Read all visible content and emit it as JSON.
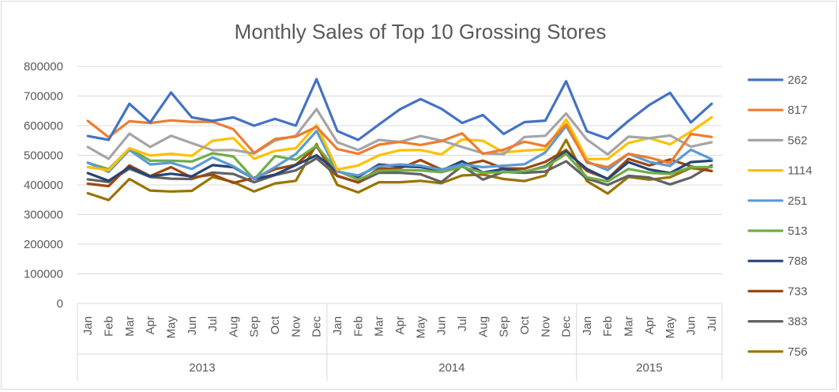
{
  "chart_data": {
    "type": "line",
    "title": "Monthly Sales of Top 10 Grossing Stores",
    "xlabel": "",
    "ylabel": "",
    "ylim": [
      0,
      800000
    ],
    "y_ticks": [
      "0",
      "100000",
      "200000",
      "300000",
      "400000",
      "500000",
      "600000",
      "700000",
      "800000"
    ],
    "grid": true,
    "legend_position": "right",
    "years": [
      {
        "label": "2013",
        "months": 12
      },
      {
        "label": "2014",
        "months": 12
      },
      {
        "label": "2015",
        "months": 7
      }
    ],
    "categories": [
      "Jan",
      "Feb",
      "Mar",
      "Apr",
      "May",
      "Jun",
      "Jul",
      "Aug",
      "Sep",
      "Oct",
      "Nov",
      "Dec",
      "Jan",
      "Feb",
      "Mar",
      "Apr",
      "May",
      "Jun",
      "Jul",
      "Aug",
      "Sep",
      "Oct",
      "Nov",
      "Dec",
      "Jan",
      "Feb",
      "Mar",
      "Apr",
      "May",
      "Jun",
      "Jul"
    ],
    "series": [
      {
        "name": "262",
        "color": "#4472C4",
        "values": [
          565000,
          552000,
          674000,
          611000,
          712000,
          628000,
          616000,
          628000,
          600000,
          623000,
          600000,
          757000,
          582000,
          552000,
          604000,
          655000,
          690000,
          657000,
          609000,
          636000,
          572000,
          612000,
          617000,
          750000,
          581000,
          556000,
          616000,
          670000,
          711000,
          611000,
          674000
        ]
      },
      {
        "name": "817",
        "color": "#ED7D31",
        "values": [
          616000,
          561000,
          615000,
          609000,
          618000,
          613000,
          613000,
          588000,
          508000,
          555000,
          563000,
          596000,
          521000,
          505000,
          536000,
          545000,
          535000,
          548000,
          574000,
          505000,
          519000,
          546000,
          531000,
          604000,
          475000,
          460000,
          505000,
          492000,
          474000,
          572000,
          562000
        ]
      },
      {
        "name": "562",
        "color": "#A5A5A5",
        "values": [
          528000,
          488000,
          573000,
          528000,
          566000,
          541000,
          517000,
          518000,
          506000,
          550000,
          566000,
          656000,
          544000,
          518000,
          552000,
          545000,
          565000,
          550000,
          528000,
          507000,
          504000,
          562000,
          566000,
          641000,
          553000,
          503000,
          563000,
          558000,
          567000,
          529000,
          544000
        ]
      },
      {
        "name": "1114",
        "color": "#FFC000",
        "values": [
          460000,
          450000,
          524000,
          499000,
          505000,
          498000,
          549000,
          558000,
          488000,
          515000,
          524000,
          602000,
          452000,
          466000,
          500000,
          517000,
          518000,
          503000,
          554000,
          549000,
          510000,
          516000,
          520000,
          621000,
          487000,
          488000,
          542000,
          558000,
          537000,
          580000,
          628000
        ]
      },
      {
        "name": "251",
        "color": "#5B9BD5",
        "values": [
          475000,
          444000,
          518000,
          469000,
          475000,
          454000,
          493000,
          463000,
          420000,
          460000,
          504000,
          582000,
          445000,
          432000,
          463000,
          469000,
          465000,
          451000,
          469000,
          460000,
          465000,
          470000,
          510000,
          599000,
          479000,
          450000,
          505000,
          478000,
          464000,
          519000,
          487000
        ]
      },
      {
        "name": "513",
        "color": "#70AD47",
        "values": [
          475000,
          453000,
          523000,
          482000,
          482000,
          479000,
          507000,
          496000,
          419000,
          497000,
          485000,
          532000,
          448000,
          418000,
          448000,
          450000,
          449000,
          443000,
          461000,
          441000,
          443000,
          446000,
          460000,
          505000,
          426000,
          412000,
          454000,
          441000,
          437000,
          460000,
          460000
        ]
      },
      {
        "name": "788",
        "color": "#264478",
        "values": [
          440000,
          414000,
          460000,
          429000,
          438000,
          429000,
          467000,
          460000,
          420000,
          435000,
          467000,
          500000,
          446000,
          427000,
          469000,
          463000,
          460000,
          448000,
          480000,
          442000,
          454000,
          444000,
          463000,
          512000,
          454000,
          420000,
          477000,
          452000,
          440000,
          477000,
          482000
        ]
      },
      {
        "name": "733",
        "color": "#9E480E",
        "values": [
          404000,
          396000,
          466000,
          430000,
          460000,
          425000,
          435000,
          407000,
          424000,
          453000,
          468000,
          530000,
          431000,
          409000,
          455000,
          456000,
          484000,
          452000,
          467000,
          482000,
          456000,
          455000,
          478000,
          518000,
          447000,
          421000,
          488000,
          466000,
          486000,
          463000,
          447000
        ]
      },
      {
        "name": "383",
        "color": "#636363",
        "values": [
          419000,
          410000,
          455000,
          427000,
          421000,
          420000,
          442000,
          437000,
          409000,
          433000,
          449000,
          490000,
          430000,
          408000,
          441000,
          441000,
          436000,
          410000,
          464000,
          418000,
          444000,
          441000,
          445000,
          480000,
          421000,
          400000,
          431000,
          425000,
          402000,
          425000,
          466000
        ]
      },
      {
        "name": "756",
        "color": "#997300",
        "values": [
          372000,
          349000,
          420000,
          381000,
          378000,
          380000,
          427000,
          410000,
          378000,
          405000,
          414000,
          538000,
          400000,
          375000,
          409000,
          409000,
          414000,
          406000,
          432000,
          435000,
          420000,
          413000,
          432000,
          552000,
          413000,
          371000,
          427000,
          418000,
          426000,
          457000,
          447000
        ]
      }
    ]
  }
}
